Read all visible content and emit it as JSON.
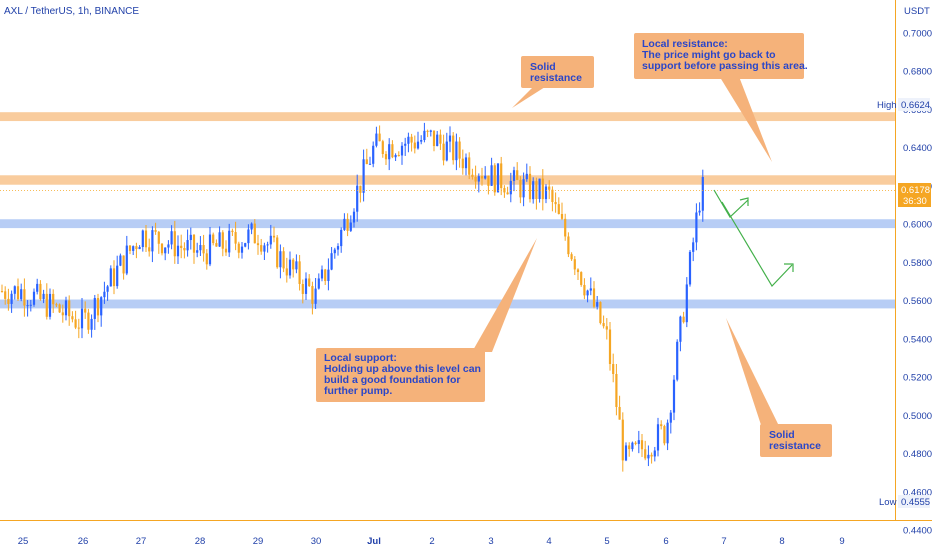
{
  "header": {
    "symbol_title": "AXL / TetherUS, 1h, BINANCE"
  },
  "price_axis": {
    "currency": "USDT",
    "ticks": [
      "0.7000",
      "0.6800",
      "0.6600",
      "0.6400",
      "0.6200",
      "0.6000",
      "0.5800",
      "0.5600",
      "0.5400",
      "0.5200",
      "0.5000",
      "0.4800",
      "0.4600",
      "0.4400"
    ],
    "high_label": "High",
    "high_value": "0.6624",
    "low_label": "Low",
    "low_value": "0.4555",
    "last_price": "0.6178",
    "countdown": "36:30"
  },
  "time_axis": {
    "labels": [
      "25",
      "26",
      "27",
      "28",
      "29",
      "30",
      "Jul",
      "2",
      "3",
      "4",
      "5",
      "6",
      "7",
      "8",
      "9"
    ]
  },
  "annotations": {
    "resistance_top": [
      "Solid",
      "resistance"
    ],
    "local_resistance": [
      "Local resistance:",
      "The price might go back to",
      "support before passing this area."
    ],
    "local_support": [
      "Local support:",
      "Holding up above this level can",
      "build a good foundation for",
      "further pump."
    ],
    "resistance_bottom": [
      "Solid",
      "resistance"
    ]
  },
  "colors": {
    "up_candle": "#2962ff",
    "down_candle": "#f5a623",
    "resistance_zone": "#f9cc9d",
    "support_zone": "#b7cdf5",
    "callout_bg": "#f5b27a",
    "projection_arrow": "#43b04a",
    "axis_text": "#1f3fa8"
  },
  "chart_data": {
    "type": "candlestick",
    "title": "AXL / TetherUS, 1h, BINANCE",
    "ylabel": "USDT",
    "ylim": [
      0.436,
      0.712
    ],
    "x_ticks": [
      "25",
      "26",
      "27",
      "28",
      "29",
      "30",
      "Jul",
      "2",
      "3",
      "4",
      "5",
      "6",
      "7",
      "8",
      "9"
    ],
    "last_price": 0.6178,
    "high": 0.6624,
    "low": 0.4555,
    "horizontal_zones": [
      {
        "kind": "resistance",
        "from": 0.6555,
        "to": 0.657
      },
      {
        "kind": "resistance",
        "from": 0.6222,
        "to": 0.624
      },
      {
        "kind": "support",
        "from": 0.5995,
        "to": 0.601
      },
      {
        "kind": "support",
        "from": 0.5575,
        "to": 0.559
      }
    ],
    "series_keypoints": [
      {
        "x": "25",
        "close": 0.565
      },
      {
        "x": "26",
        "close": 0.548
      },
      {
        "x": "27",
        "close": 0.595
      },
      {
        "x": "28",
        "close": 0.585
      },
      {
        "x": "29",
        "close": 0.595
      },
      {
        "x": "30",
        "close": 0.562
      },
      {
        "x": "Jul",
        "close": 0.64
      },
      {
        "x": "2",
        "close": 0.645
      },
      {
        "x": "3",
        "close": 0.625
      },
      {
        "x": "4",
        "close": 0.615
      },
      {
        "x": "5",
        "close": 0.54
      },
      {
        "x": "5.3",
        "close": 0.476
      },
      {
        "x": "6",
        "close": 0.492
      },
      {
        "x": "6.6",
        "close": 0.6178
      }
    ]
  }
}
